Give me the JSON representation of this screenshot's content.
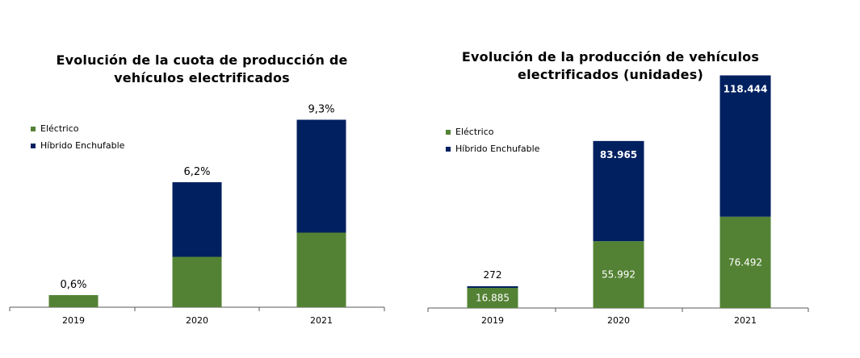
{
  "colors": {
    "electric": "#548235",
    "phev": "#002060",
    "axis": "#595959"
  },
  "chart_data": [
    {
      "type": "bar",
      "stacked": true,
      "title_line1": "Evolución de la cuota de producción de",
      "title_line2": "vehículos electrificados",
      "categories": [
        "2019",
        "2020",
        "2021"
      ],
      "series": [
        {
          "name": "Eléctrico",
          "values": [
            0.6,
            2.5,
            3.7
          ]
        },
        {
          "name": "Híbrido Enchufable",
          "values": [
            0.0,
            3.7,
            5.6
          ]
        }
      ],
      "total_labels": [
        "0,6%",
        "6,2%",
        "9,3%"
      ],
      "ylim": [
        0,
        9.6
      ],
      "legend": "top-left",
      "grid": false
    },
    {
      "type": "bar",
      "stacked": true,
      "title_line1": "Evolución de la producción de vehículos",
      "title_line2": "electrificados (unidades)",
      "categories": [
        "2019",
        "2020",
        "2021"
      ],
      "series": [
        {
          "name": "Eléctrico",
          "values": [
            16885,
            55992,
            76492
          ],
          "labels": [
            "16.885",
            "55.992",
            "76.492"
          ]
        },
        {
          "name": "Híbrido Enchufable",
          "values": [
            272,
            83965,
            118444
          ],
          "labels": [
            "272",
            "83.965",
            "118.444"
          ]
        }
      ],
      "ylim": [
        0,
        200000
      ],
      "legend": "top-left",
      "grid": false
    }
  ]
}
